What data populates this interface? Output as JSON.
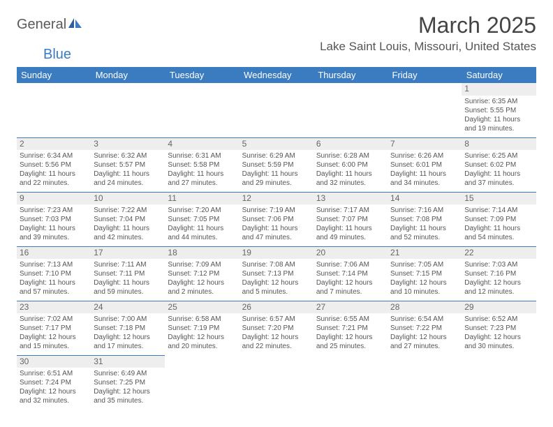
{
  "logo": {
    "part1": "General",
    "part2": "Blue"
  },
  "title": "March 2025",
  "location": "Lake Saint Louis, Missouri, United States",
  "colors": {
    "header_bg": "#3b7bbf",
    "header_text": "#ffffff",
    "daynum_bg": "#eeeeee",
    "border": "#3b7bbf",
    "text": "#555555"
  },
  "daysOfWeek": [
    "Sunday",
    "Monday",
    "Tuesday",
    "Wednesday",
    "Thursday",
    "Friday",
    "Saturday"
  ],
  "weeks": [
    [
      null,
      null,
      null,
      null,
      null,
      null,
      {
        "n": "1",
        "sr": "Sunrise: 6:35 AM",
        "ss": "Sunset: 5:55 PM",
        "d1": "Daylight: 11 hours",
        "d2": "and 19 minutes."
      }
    ],
    [
      {
        "n": "2",
        "sr": "Sunrise: 6:34 AM",
        "ss": "Sunset: 5:56 PM",
        "d1": "Daylight: 11 hours",
        "d2": "and 22 minutes."
      },
      {
        "n": "3",
        "sr": "Sunrise: 6:32 AM",
        "ss": "Sunset: 5:57 PM",
        "d1": "Daylight: 11 hours",
        "d2": "and 24 minutes."
      },
      {
        "n": "4",
        "sr": "Sunrise: 6:31 AM",
        "ss": "Sunset: 5:58 PM",
        "d1": "Daylight: 11 hours",
        "d2": "and 27 minutes."
      },
      {
        "n": "5",
        "sr": "Sunrise: 6:29 AM",
        "ss": "Sunset: 5:59 PM",
        "d1": "Daylight: 11 hours",
        "d2": "and 29 minutes."
      },
      {
        "n": "6",
        "sr": "Sunrise: 6:28 AM",
        "ss": "Sunset: 6:00 PM",
        "d1": "Daylight: 11 hours",
        "d2": "and 32 minutes."
      },
      {
        "n": "7",
        "sr": "Sunrise: 6:26 AM",
        "ss": "Sunset: 6:01 PM",
        "d1": "Daylight: 11 hours",
        "d2": "and 34 minutes."
      },
      {
        "n": "8",
        "sr": "Sunrise: 6:25 AM",
        "ss": "Sunset: 6:02 PM",
        "d1": "Daylight: 11 hours",
        "d2": "and 37 minutes."
      }
    ],
    [
      {
        "n": "9",
        "sr": "Sunrise: 7:23 AM",
        "ss": "Sunset: 7:03 PM",
        "d1": "Daylight: 11 hours",
        "d2": "and 39 minutes."
      },
      {
        "n": "10",
        "sr": "Sunrise: 7:22 AM",
        "ss": "Sunset: 7:04 PM",
        "d1": "Daylight: 11 hours",
        "d2": "and 42 minutes."
      },
      {
        "n": "11",
        "sr": "Sunrise: 7:20 AM",
        "ss": "Sunset: 7:05 PM",
        "d1": "Daylight: 11 hours",
        "d2": "and 44 minutes."
      },
      {
        "n": "12",
        "sr": "Sunrise: 7:19 AM",
        "ss": "Sunset: 7:06 PM",
        "d1": "Daylight: 11 hours",
        "d2": "and 47 minutes."
      },
      {
        "n": "13",
        "sr": "Sunrise: 7:17 AM",
        "ss": "Sunset: 7:07 PM",
        "d1": "Daylight: 11 hours",
        "d2": "and 49 minutes."
      },
      {
        "n": "14",
        "sr": "Sunrise: 7:16 AM",
        "ss": "Sunset: 7:08 PM",
        "d1": "Daylight: 11 hours",
        "d2": "and 52 minutes."
      },
      {
        "n": "15",
        "sr": "Sunrise: 7:14 AM",
        "ss": "Sunset: 7:09 PM",
        "d1": "Daylight: 11 hours",
        "d2": "and 54 minutes."
      }
    ],
    [
      {
        "n": "16",
        "sr": "Sunrise: 7:13 AM",
        "ss": "Sunset: 7:10 PM",
        "d1": "Daylight: 11 hours",
        "d2": "and 57 minutes."
      },
      {
        "n": "17",
        "sr": "Sunrise: 7:11 AM",
        "ss": "Sunset: 7:11 PM",
        "d1": "Daylight: 11 hours",
        "d2": "and 59 minutes."
      },
      {
        "n": "18",
        "sr": "Sunrise: 7:09 AM",
        "ss": "Sunset: 7:12 PM",
        "d1": "Daylight: 12 hours",
        "d2": "and 2 minutes."
      },
      {
        "n": "19",
        "sr": "Sunrise: 7:08 AM",
        "ss": "Sunset: 7:13 PM",
        "d1": "Daylight: 12 hours",
        "d2": "and 5 minutes."
      },
      {
        "n": "20",
        "sr": "Sunrise: 7:06 AM",
        "ss": "Sunset: 7:14 PM",
        "d1": "Daylight: 12 hours",
        "d2": "and 7 minutes."
      },
      {
        "n": "21",
        "sr": "Sunrise: 7:05 AM",
        "ss": "Sunset: 7:15 PM",
        "d1": "Daylight: 12 hours",
        "d2": "and 10 minutes."
      },
      {
        "n": "22",
        "sr": "Sunrise: 7:03 AM",
        "ss": "Sunset: 7:16 PM",
        "d1": "Daylight: 12 hours",
        "d2": "and 12 minutes."
      }
    ],
    [
      {
        "n": "23",
        "sr": "Sunrise: 7:02 AM",
        "ss": "Sunset: 7:17 PM",
        "d1": "Daylight: 12 hours",
        "d2": "and 15 minutes."
      },
      {
        "n": "24",
        "sr": "Sunrise: 7:00 AM",
        "ss": "Sunset: 7:18 PM",
        "d1": "Daylight: 12 hours",
        "d2": "and 17 minutes."
      },
      {
        "n": "25",
        "sr": "Sunrise: 6:58 AM",
        "ss": "Sunset: 7:19 PM",
        "d1": "Daylight: 12 hours",
        "d2": "and 20 minutes."
      },
      {
        "n": "26",
        "sr": "Sunrise: 6:57 AM",
        "ss": "Sunset: 7:20 PM",
        "d1": "Daylight: 12 hours",
        "d2": "and 22 minutes."
      },
      {
        "n": "27",
        "sr": "Sunrise: 6:55 AM",
        "ss": "Sunset: 7:21 PM",
        "d1": "Daylight: 12 hours",
        "d2": "and 25 minutes."
      },
      {
        "n": "28",
        "sr": "Sunrise: 6:54 AM",
        "ss": "Sunset: 7:22 PM",
        "d1": "Daylight: 12 hours",
        "d2": "and 27 minutes."
      },
      {
        "n": "29",
        "sr": "Sunrise: 6:52 AM",
        "ss": "Sunset: 7:23 PM",
        "d1": "Daylight: 12 hours",
        "d2": "and 30 minutes."
      }
    ],
    [
      {
        "n": "30",
        "sr": "Sunrise: 6:51 AM",
        "ss": "Sunset: 7:24 PM",
        "d1": "Daylight: 12 hours",
        "d2": "and 32 minutes."
      },
      {
        "n": "31",
        "sr": "Sunrise: 6:49 AM",
        "ss": "Sunset: 7:25 PM",
        "d1": "Daylight: 12 hours",
        "d2": "and 35 minutes."
      },
      null,
      null,
      null,
      null,
      null
    ]
  ]
}
